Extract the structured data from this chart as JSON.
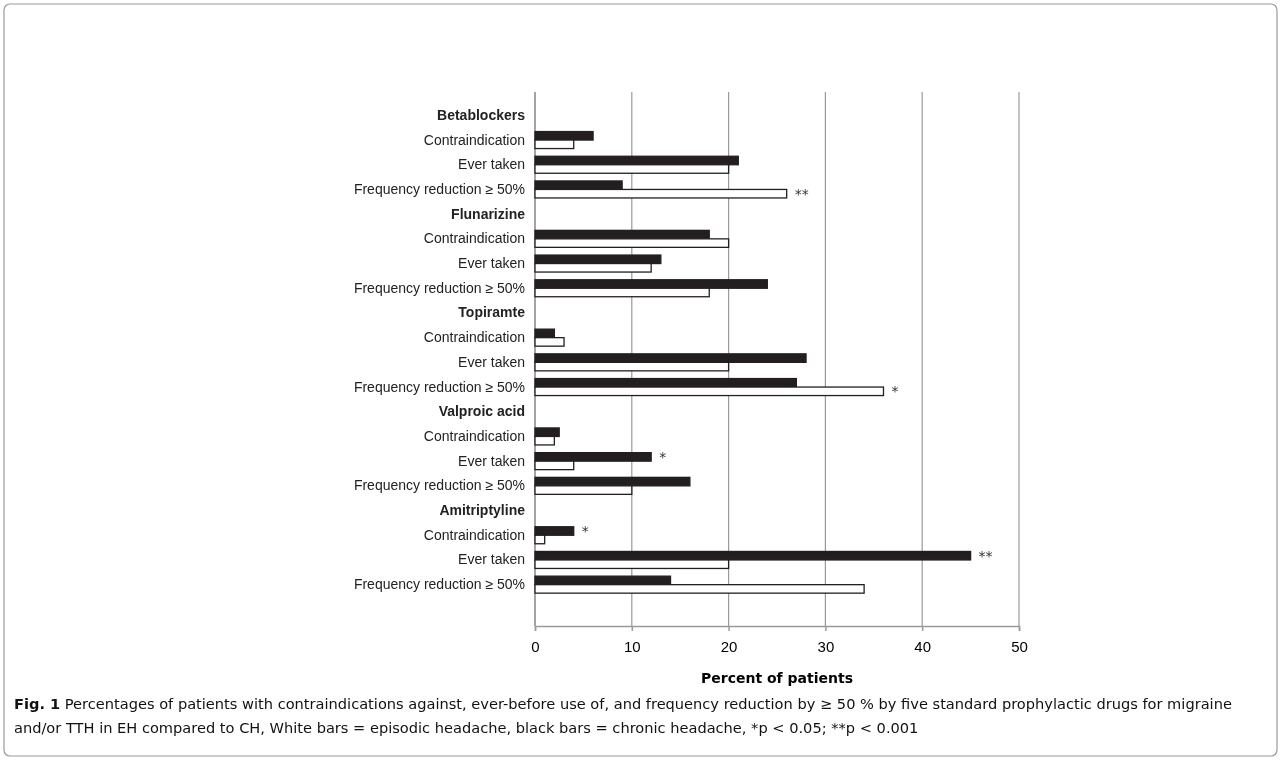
{
  "chart_data": {
    "type": "bar",
    "orientation": "horizontal",
    "xlabel": "Percent of patients",
    "categories": [
      "Betablockers",
      "Contraindication",
      "Ever taken",
      "Frequency reduction ≥ 50%",
      "Flunarizine",
      "Contraindication",
      "Ever taken",
      "Frequency reduction ≥ 50%",
      "Topiramte",
      "Contraindication",
      "Ever taken",
      "Frequency reduction ≥ 50%",
      "Valproic acid",
      "Contraindication",
      "Ever taken",
      "Frequency reduction ≥ 50%",
      "Amitriptyline",
      "Contraindication",
      "Ever taken",
      "Frequency reduction ≥ 50%"
    ],
    "series": [
      {
        "color": "#231f20",
        "values": [
          null,
          6,
          21,
          9,
          null,
          18,
          13,
          24,
          null,
          2,
          28,
          27,
          null,
          2.5,
          12,
          16,
          null,
          4,
          45,
          14
        ],
        "value_labels": [
          null,
          null,
          null,
          null,
          null,
          null,
          null,
          null,
          null,
          null,
          null,
          null,
          null,
          null,
          "*",
          null,
          null,
          "*",
          "**",
          null
        ]
      },
      {
        "color": "#ffffff",
        "values": [
          null,
          4,
          20,
          26,
          null,
          20,
          12,
          18,
          null,
          3,
          20,
          36,
          null,
          2,
          4,
          10,
          null,
          1,
          20,
          34
        ],
        "value_labels": [
          null,
          null,
          null,
          "**",
          null,
          null,
          null,
          null,
          null,
          null,
          null,
          "*",
          null,
          null,
          null,
          null,
          null,
          null,
          null,
          null
        ]
      }
    ],
    "xlim": [
      0,
      50
    ],
    "xticks": [
      0,
      10,
      20,
      30,
      40,
      50
    ],
    "grid": "x",
    "annotations": [
      "Fig. 1",
      "Percentages of patients with contraindications against, ever-before use of, and frequency reduction by ≥ 50 % by five standard prophylactic drugs for migraine and/or TTH in EH compared to CH, White bars = episodic headache, black bars = chronic headache, *p < 0.05; **p < 0.001"
    ]
  }
}
